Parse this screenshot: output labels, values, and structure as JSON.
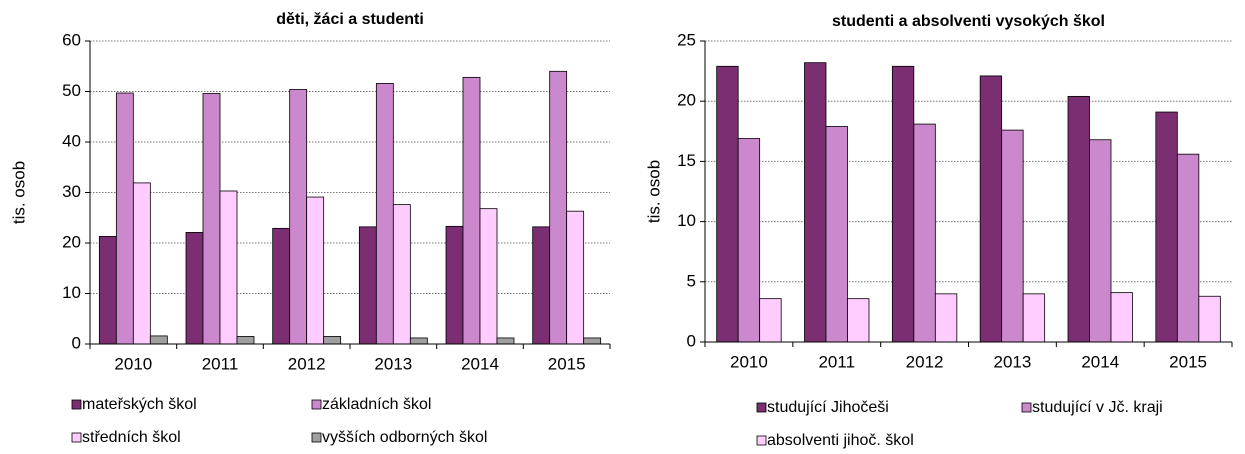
{
  "chart_data": [
    {
      "type": "bar",
      "title": "děti, žáci a studenti",
      "ylabel": "tis. osob",
      "categories": [
        "2010",
        "2011",
        "2012",
        "2013",
        "2014",
        "2015"
      ],
      "ylim": [
        0,
        60
      ],
      "yticks": [
        0,
        10,
        20,
        30,
        40,
        50,
        60
      ],
      "grid": true,
      "series": [
        {
          "name": "mateřských škol",
          "color": "#7b2f72",
          "values": [
            21.3,
            22.1,
            22.9,
            23.2,
            23.3,
            23.2
          ]
        },
        {
          "name": "základních škol",
          "color": "#cc88cc",
          "values": [
            49.7,
            49.6,
            50.4,
            51.6,
            52.8,
            54.0
          ]
        },
        {
          "name": "středních škol",
          "color": "#ffccff",
          "values": [
            31.9,
            30.3,
            29.1,
            27.6,
            26.8,
            26.3
          ]
        },
        {
          "name": "vyšších odborných škol",
          "color": "#a0a0a0",
          "values": [
            1.6,
            1.5,
            1.5,
            1.2,
            1.2,
            1.2
          ]
        }
      ]
    },
    {
      "type": "bar",
      "title": "studenti a absolventi vysokých škol",
      "ylabel": "tis. osob",
      "categories": [
        "2010",
        "2011",
        "2012",
        "2013",
        "2014",
        "2015"
      ],
      "ylim": [
        0,
        25
      ],
      "yticks": [
        0,
        5,
        10,
        15,
        20,
        25
      ],
      "grid": true,
      "series": [
        {
          "name": "studující Jihočeši",
          "color": "#7b2f72",
          "values": [
            22.9,
            23.2,
            22.9,
            22.1,
            20.4,
            19.1
          ]
        },
        {
          "name": "studující v Jč. kraji",
          "color": "#cc88cc",
          "values": [
            16.9,
            17.9,
            18.1,
            17.6,
            16.8,
            15.6
          ]
        },
        {
          "name": "absolventi jihoč. škol",
          "color": "#ffccff",
          "values": [
            3.6,
            3.6,
            4.0,
            4.0,
            4.1,
            3.8
          ]
        }
      ]
    }
  ]
}
